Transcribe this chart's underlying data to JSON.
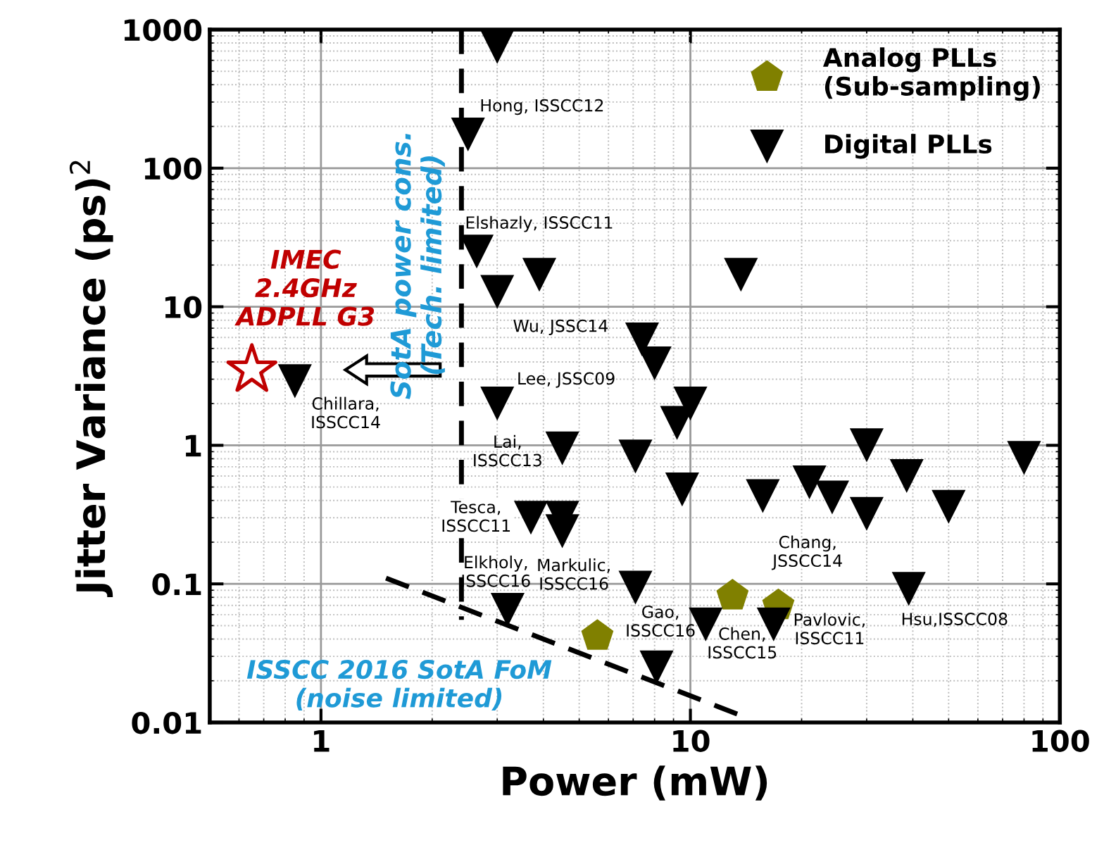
{
  "chart_data": {
    "type": "scatter",
    "xlabel": "Power (mW)",
    "ylabel": "Jitter Variance (ps)$^{2}$",
    "log": "xy",
    "xlim": [
      0.5,
      100
    ],
    "ylim": [
      0.01,
      1000
    ],
    "xticks": [
      1,
      10,
      100
    ],
    "yticks": [
      0.01,
      0.1,
      1,
      10,
      100,
      1000
    ],
    "grid": true,
    "legend": "top right",
    "series": [
      {
        "name": "Analog PLLs\n(Sub-sampling)",
        "color": "#808000",
        "x": [
          5.6,
          13,
          17.3
        ],
        "values": [
          0.042,
          0.082,
          0.07
        ]
      },
      {
        "name": "Digital PLLs",
        "color": "#000000",
        "marker": "triangle",
        "x": [
          3.0,
          2.5,
          2.64,
          3.9,
          3.0,
          13.7,
          7.4,
          8.0,
          10,
          9.2,
          3.0,
          0.85,
          4.5,
          7.1,
          9.5,
          15.7,
          21,
          24.2,
          30,
          30,
          38.5,
          50,
          80,
          3.7,
          4.5,
          4.5,
          3.2,
          7.1,
          11,
          8.1,
          16.8,
          39
        ],
        "values": [
          750,
          175,
          25,
          17,
          12.8,
          17,
          5.8,
          3.9,
          2.0,
          1.45,
          2.0,
          2.9,
          0.95,
          0.83,
          0.48,
          0.43,
          0.54,
          0.42,
          1.0,
          0.32,
          0.6,
          0.36,
          0.81,
          0.3,
          0.3,
          0.24,
          0.065,
          0.094,
          0.051,
          0.025,
          0.051,
          0.092
        ]
      },
      {
        "color": "#c00000",
        "marker": "star",
        "x": [
          0.65
        ],
        "values": [
          3.5
        ]
      },
      {
        "type": "line",
        "color": "#000000",
        "line_style": "dashed",
        "x": [
          2.4,
          2.4
        ],
        "values": [
          1000,
          0.055
        ]
      },
      {
        "type": "line",
        "color": "#000000",
        "line_style": "dashed",
        "x": [
          1.5,
          14
        ],
        "values": [
          0.11,
          0.011
        ]
      }
    ],
    "annotations": [
      {
        "text": "Hong, ISSCC12",
        "x": 2.5,
        "y": 175
      },
      {
        "text": "Elshazly, ISSCC11",
        "x": 2.64,
        "y": 25
      },
      {
        "text": "Wu, JSSC14",
        "x": 3.0,
        "y": 12.8
      },
      {
        "text": "Lee, JSSC09",
        "x": 3.0,
        "y": 2.0
      },
      {
        "text": "Chillara,\nISSCC14",
        "x": 0.85,
        "y": 2.9
      },
      {
        "text": "Lai,\nISSCC13",
        "x": 4.5,
        "y": 0.95
      },
      {
        "text": "Tesca,\nISSCC11",
        "x": 3.7,
        "y": 0.3
      },
      {
        "text": "Elkholy,\nISSCC16",
        "x": 3.2,
        "y": 0.065
      },
      {
        "text": "Markulic,\nISSCC16",
        "x": 5.6,
        "y": 0.042
      },
      {
        "text": "Gao,\nISSCC16",
        "x": 8.1,
        "y": 0.025
      },
      {
        "text": "Chen,\nISSCC15",
        "x": 13,
        "y": 0.082
      },
      {
        "text": "Chang,\nJSSCC14",
        "x": 17.3,
        "y": 0.07
      },
      {
        "text": "Pavlovic,\nISSCC11",
        "x": 16.8,
        "y": 0.051
      },
      {
        "text": "Hsu,ISSCC08",
        "x": 39,
        "y": 0.092
      },
      {
        "text": "IMEC\n2.4GHz\nADPLL G3",
        "x": 0.65,
        "y": 3.5
      },
      {
        "text": "SotA power cons.\n(Tech. limited)",
        "x": 2.4,
        "y": 20
      },
      {
        "text": "ISSCC 2016 SotA FoM\n(noise limited)",
        "x": 5,
        "y": 0.048
      }
    ]
  }
}
